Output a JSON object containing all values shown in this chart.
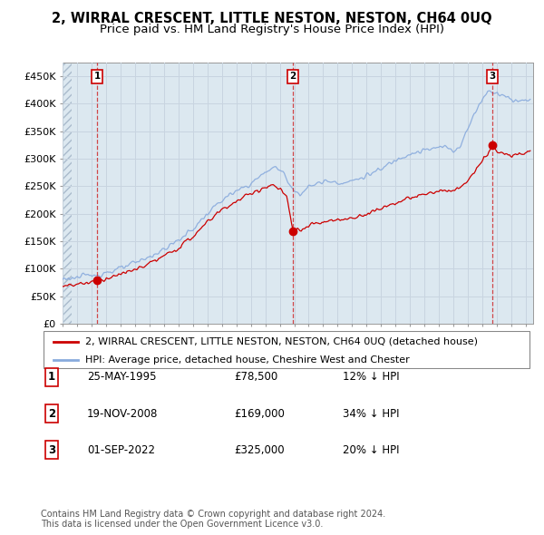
{
  "title": "2, WIRRAL CRESCENT, LITTLE NESTON, NESTON, CH64 0UQ",
  "subtitle": "Price paid vs. HM Land Registry's House Price Index (HPI)",
  "ylim": [
    0,
    475000
  ],
  "yticks": [
    0,
    50000,
    100000,
    150000,
    200000,
    250000,
    300000,
    350000,
    400000,
    450000
  ],
  "ytick_labels": [
    "£0",
    "£50K",
    "£100K",
    "£150K",
    "£200K",
    "£250K",
    "£300K",
    "£350K",
    "£400K",
    "£450K"
  ],
  "xlim_start": 1993.0,
  "xlim_end": 2025.5,
  "hatch_end": 1993.6,
  "sale_dates": [
    1995.39,
    2008.89,
    2022.67
  ],
  "sale_prices": [
    78500,
    169000,
    325000
  ],
  "sale_labels": [
    "1",
    "2",
    "3"
  ],
  "hpi_color": "#88aadd",
  "sale_color": "#cc0000",
  "dashed_vline_color": "#cc0000",
  "grid_color": "#c8d4e0",
  "bg_color": "#dce8f0",
  "legend_entries": [
    "2, WIRRAL CRESCENT, LITTLE NESTON, NESTON, CH64 0UQ (detached house)",
    "HPI: Average price, detached house, Cheshire West and Chester"
  ],
  "table_entries": [
    {
      "num": "1",
      "date": "25-MAY-1995",
      "price": "£78,500",
      "change": "12% ↓ HPI"
    },
    {
      "num": "2",
      "date": "19-NOV-2008",
      "price": "£169,000",
      "change": "34% ↓ HPI"
    },
    {
      "num": "3",
      "date": "01-SEP-2022",
      "price": "£325,000",
      "change": "20% ↓ HPI"
    }
  ],
  "footnote": "Contains HM Land Registry data © Crown copyright and database right 2024.\nThis data is licensed under the Open Government Licence v3.0.",
  "title_fontsize": 10.5,
  "subtitle_fontsize": 9.5,
  "tick_fontsize": 8,
  "legend_fontsize": 8,
  "table_fontsize": 8.5
}
